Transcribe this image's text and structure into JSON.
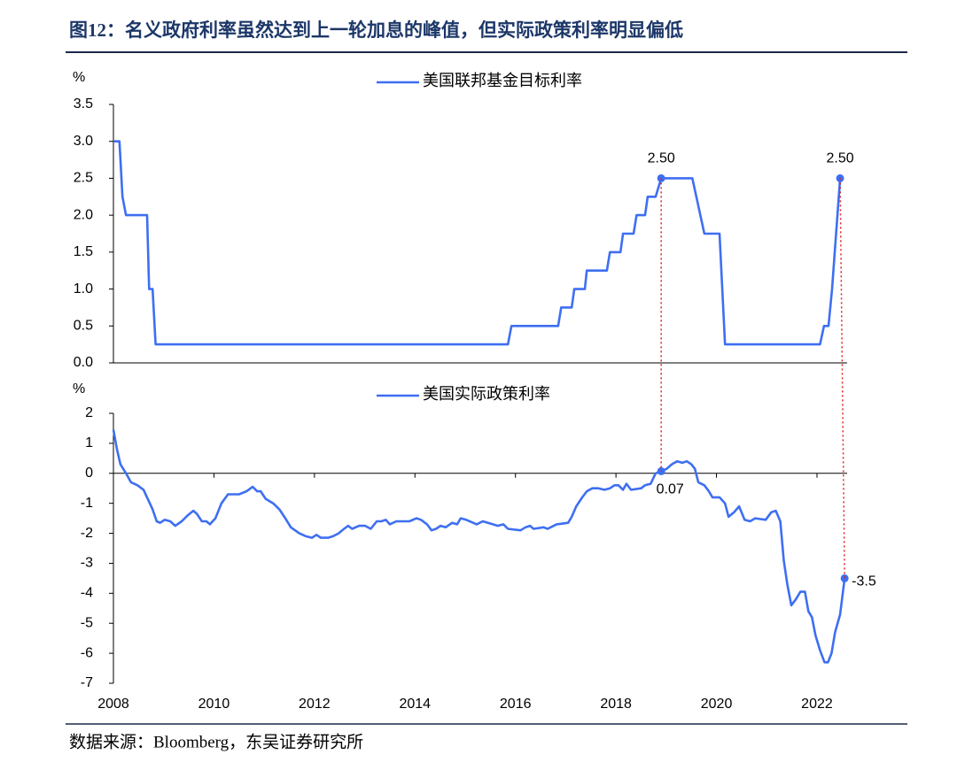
{
  "title": "图12：名义政府利率虽然达到上一轮加息的峰值，但实际政策利率明显偏低",
  "source": "数据来源：Bloomberg，东吴证券研究所",
  "chart_data": [
    {
      "type": "line",
      "y_unit": "%",
      "series": [
        {
          "name": "美国联邦基金目标利率",
          "color": "#3e6ff2",
          "x": [
            2008,
            2008.12,
            2008.18,
            2008.25,
            2008.67,
            2008.71,
            2008.78,
            2008.84,
            2015.85,
            2015.92,
            2016.85,
            2016.91,
            2017.12,
            2017.17,
            2017.38,
            2017.42,
            2017.82,
            2017.88,
            2018.09,
            2018.14,
            2018.35,
            2018.41,
            2018.58,
            2018.63,
            2018.79,
            2018.9,
            2019.52,
            2019.76,
            2020.06,
            2020.17,
            2022.06,
            2022.14,
            2022.23,
            2022.3,
            2022.46
          ],
          "values": [
            3,
            3,
            2.25,
            2,
            2,
            1,
            1,
            0.25,
            0.25,
            0.5,
            0.5,
            0.75,
            0.75,
            1,
            1,
            1.25,
            1.25,
            1.5,
            1.5,
            1.75,
            1.75,
            2,
            2,
            2.25,
            2.25,
            2.5,
            2.5,
            1.75,
            1.75,
            0.25,
            0.25,
            0.5,
            0.5,
            1,
            2.5
          ]
        }
      ],
      "annotations": [
        {
          "x": 2018.9,
          "y": 2.5,
          "label": "2.50"
        },
        {
          "x": 2022.46,
          "y": 2.5,
          "label": "2.50"
        }
      ],
      "xlim": [
        2008,
        2022.6
      ],
      "ylim": [
        0,
        3.5
      ],
      "yticks": [
        {
          "value": 0,
          "label": "0.0"
        },
        {
          "value": 0.5,
          "label": "0.5"
        },
        {
          "value": 1,
          "label": "1.0"
        },
        {
          "value": 1.5,
          "label": "1.5"
        },
        {
          "value": 2,
          "label": "2.0"
        },
        {
          "value": 2.5,
          "label": "2.5"
        },
        {
          "value": 3,
          "label": "3.0"
        },
        {
          "value": 3.5,
          "label": "3.5"
        }
      ]
    },
    {
      "type": "line",
      "y_unit": "%",
      "series": [
        {
          "name": "美国实际政策利率",
          "color": "#3e6ff2",
          "x": [
            2008.0,
            2008.07,
            2008.14,
            2008.25,
            2008.35,
            2008.48,
            2008.6,
            2008.78,
            2008.86,
            2008.93,
            2009.02,
            2009.13,
            2009.23,
            2009.36,
            2009.48,
            2009.59,
            2009.66,
            2009.76,
            2009.85,
            2009.92,
            2010.03,
            2010.15,
            2010.28,
            2010.5,
            2010.65,
            2010.77,
            2010.86,
            2010.93,
            2011.03,
            2011.18,
            2011.3,
            2011.42,
            2011.53,
            2011.7,
            2011.83,
            2011.95,
            2012.04,
            2012.13,
            2012.27,
            2012.37,
            2012.48,
            2012.59,
            2012.67,
            2012.75,
            2012.89,
            2013.01,
            2013.12,
            2013.24,
            2013.33,
            2013.42,
            2013.5,
            2013.63,
            2013.89,
            2014.03,
            2014.12,
            2014.24,
            2014.33,
            2014.42,
            2014.51,
            2014.61,
            2014.74,
            2014.84,
            2014.91,
            2015.02,
            2015.23,
            2015.35,
            2015.55,
            2015.65,
            2015.76,
            2015.85,
            2016.1,
            2016.2,
            2016.29,
            2016.36,
            2016.56,
            2016.64,
            2016.82,
            2017.05,
            2017.12,
            2017.21,
            2017.33,
            2017.42,
            2017.53,
            2017.65,
            2017.77,
            2017.88,
            2017.97,
            2018.05,
            2018.14,
            2018.21,
            2018.3,
            2018.5,
            2018.58,
            2018.69,
            2018.79,
            2018.9,
            2019.01,
            2019.11,
            2019.22,
            2019.32,
            2019.41,
            2019.5,
            2019.57,
            2019.64,
            2019.76,
            2019.85,
            2019.92,
            2020.06,
            2020.17,
            2020.24,
            2020.35,
            2020.45,
            2020.56,
            2020.67,
            2020.77,
            2020.98,
            2021.09,
            2021.18,
            2021.27,
            2021.34,
            2021.41,
            2021.49,
            2021.58,
            2021.67,
            2021.76,
            2021.83,
            2021.9,
            2021.97,
            2022.06,
            2022.15,
            2022.22,
            2022.29,
            2022.36,
            2022.46,
            2022.55
          ],
          "values": [
            1.45,
            0.8,
            0.3,
            0,
            -0.3,
            -0.4,
            -0.55,
            -1.2,
            -1.6,
            -1.65,
            -1.55,
            -1.6,
            -1.75,
            -1.6,
            -1.4,
            -1.25,
            -1.35,
            -1.6,
            -1.6,
            -1.7,
            -1.5,
            -1.0,
            -0.7,
            -0.7,
            -0.6,
            -0.45,
            -0.6,
            -0.6,
            -0.85,
            -1.0,
            -1.2,
            -1.5,
            -1.8,
            -2.0,
            -2.1,
            -2.15,
            -2.05,
            -2.15,
            -2.15,
            -2.1,
            -2.0,
            -1.85,
            -1.75,
            -1.85,
            -1.75,
            -1.75,
            -1.85,
            -1.6,
            -1.6,
            -1.55,
            -1.7,
            -1.6,
            -1.6,
            -1.5,
            -1.55,
            -1.7,
            -1.9,
            -1.85,
            -1.75,
            -1.8,
            -1.65,
            -1.7,
            -1.5,
            -1.55,
            -1.7,
            -1.6,
            -1.7,
            -1.75,
            -1.7,
            -1.85,
            -1.9,
            -1.8,
            -1.75,
            -1.85,
            -1.8,
            -1.85,
            -1.7,
            -1.65,
            -1.45,
            -1.1,
            -0.8,
            -0.6,
            -0.5,
            -0.5,
            -0.55,
            -0.5,
            -0.4,
            -0.4,
            -0.55,
            -0.35,
            -0.55,
            -0.5,
            -0.4,
            -0.35,
            0,
            0.07,
            0.15,
            0.3,
            0.4,
            0.35,
            0.4,
            0.3,
            0.15,
            -0.3,
            -0.4,
            -0.6,
            -0.8,
            -0.8,
            -1.0,
            -1.45,
            -1.3,
            -1.1,
            -1.55,
            -1.6,
            -1.5,
            -1.55,
            -1.3,
            -1.25,
            -1.6,
            -2.9,
            -3.7,
            -4.4,
            -4.2,
            -3.95,
            -3.95,
            -4.6,
            -4.8,
            -5.4,
            -5.9,
            -6.3,
            -6.3,
            -6.0,
            -5.3,
            -4.7,
            -3.5
          ]
        }
      ],
      "annotations": [
        {
          "x": 2018.9,
          "y": 0.07,
          "label": "0.07"
        },
        {
          "x": 2022.55,
          "y": -3.5,
          "label": "-3.5"
        }
      ],
      "xlim": [
        2008,
        2022.6
      ],
      "xticks": [
        2008,
        2010,
        2012,
        2014,
        2016,
        2018,
        2020,
        2022
      ],
      "ylim": [
        -7,
        2
      ],
      "yticks": [
        -7,
        -6,
        -5,
        -4,
        -3,
        -2,
        -1,
        0,
        1,
        2
      ]
    }
  ]
}
